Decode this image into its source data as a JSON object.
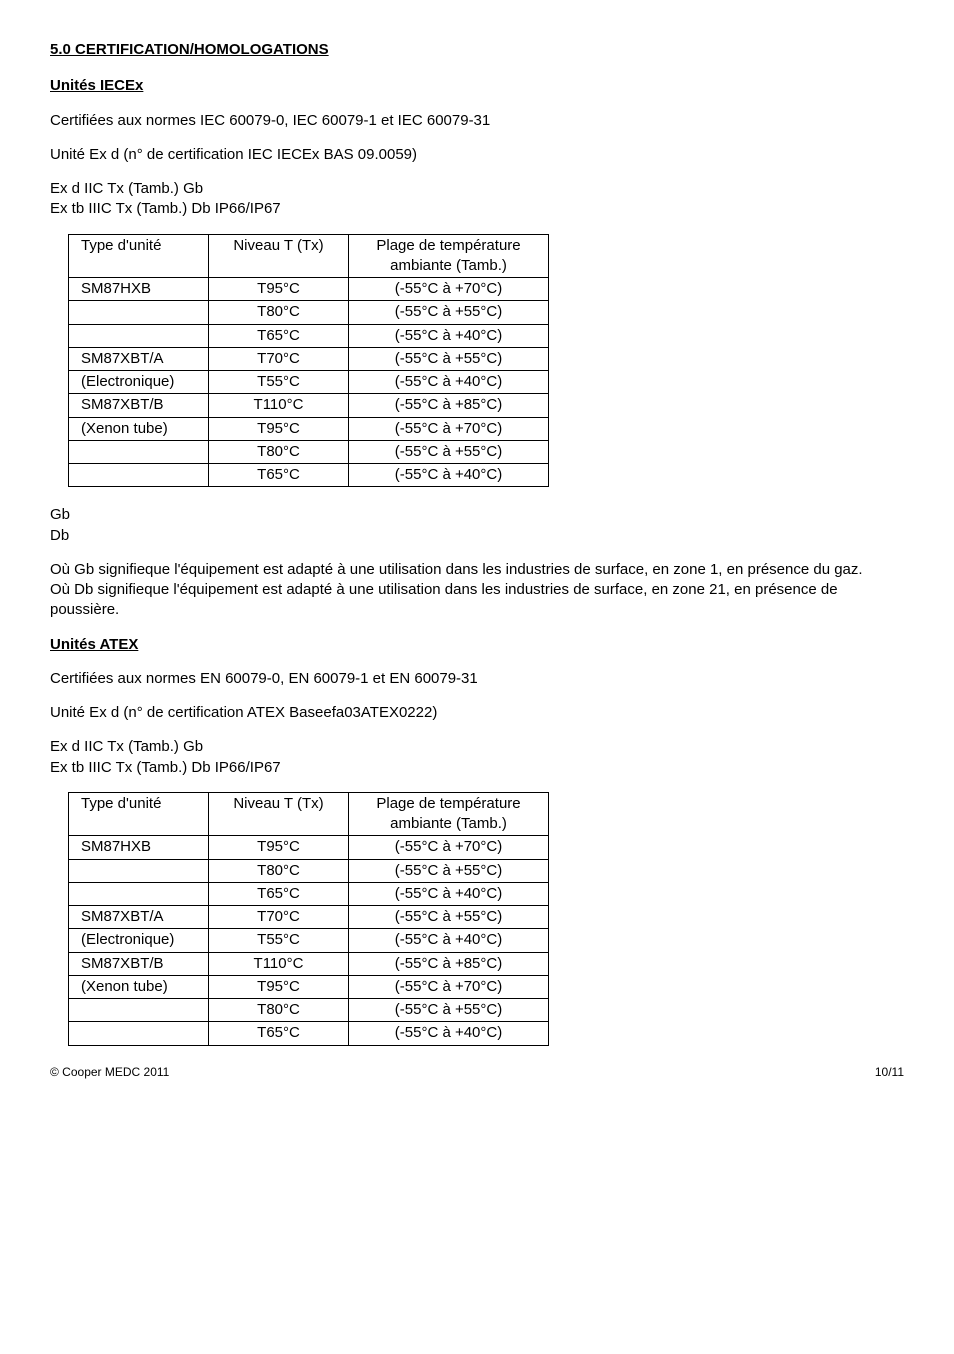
{
  "section_title": "5.0 CERTIFICATION/HOMOLOGATIONS",
  "iecex": {
    "heading": "Unités IECEx",
    "cert_line": "Certifiées aux normes IEC 60079-0, IEC 60079-1 et IEC 60079-31",
    "unit_line": "Unité Ex d (n° de certification IEC IECEx BAS 09.0059)",
    "code1": "Ex d IIC Tx (Tamb.) Gb",
    "code2": "Ex tb IIIC Tx (Tamb.) Db IP66/IP67",
    "table": {
      "head": {
        "c1": "Type d'unité",
        "c2": "Niveau T  (Tx)",
        "c3a": "Plage de température",
        "c3b": "ambiante (Tamb.)"
      },
      "rows": [
        {
          "c1": "SM87HXB",
          "c2": "T95°C",
          "c3": "(-55°C à +70°C)"
        },
        {
          "c1": "",
          "c2": "T80°C",
          "c3": "(-55°C à +55°C)"
        },
        {
          "c1": "",
          "c2": "T65°C",
          "c3": "(-55°C à +40°C)"
        },
        {
          "c1": "SM87XBT/A",
          "c2": "T70°C",
          "c3": "(-55°C à +55°C)"
        },
        {
          "c1": "(Electronique)",
          "c2": "T55°C",
          "c3": "(-55°C à +40°C)"
        },
        {
          "c1": "SM87XBT/B",
          "c2": "T110°C",
          "c3": "(-55°C à +85°C)"
        },
        {
          "c1": "(Xenon tube)",
          "c2": "T95°C",
          "c3": "(-55°C à +70°C)"
        },
        {
          "c1": "",
          "c2": "T80°C",
          "c3": "(-55°C à +55°C)"
        },
        {
          "c1": "",
          "c2": "T65°C",
          "c3": "(-55°C à +40°C)"
        }
      ]
    },
    "gb_label": "Gb",
    "db_label": "Db",
    "gb_text": "Où Gb signifieque l'équipement est adapté à une utilisation dans les industries de surface, en zone 1, en présence du gaz.",
    "db_text": "Où Db signifieque l'équipement est adapté à une utilisation dans les industries de surface, en zone 21, en présence de poussière."
  },
  "atex": {
    "heading": "Unités ATEX",
    "cert_line": "Certifiées aux normes EN 60079-0, EN 60079-1 et EN 60079-31",
    "unit_line": "Unité Ex d (n° de certification ATEX Baseefa03ATEX0222)",
    "code1": "Ex d IIC Tx (Tamb.) Gb",
    "code2": "Ex tb IIIC Tx (Tamb.) Db IP66/IP67",
    "table": {
      "head": {
        "c1": "Type d'unité",
        "c2": "Niveau T  (Tx)",
        "c3a": "Plage de température",
        "c3b": "ambiante (Tamb.)"
      },
      "rows": [
        {
          "c1": "SM87HXB",
          "c2": "T95°C",
          "c3": "(-55°C à +70°C)"
        },
        {
          "c1": "",
          "c2": "T80°C",
          "c3": "(-55°C à +55°C)"
        },
        {
          "c1": "",
          "c2": "T65°C",
          "c3": "(-55°C à +40°C)"
        },
        {
          "c1": "SM87XBT/A",
          "c2": "T70°C",
          "c3": "(-55°C à +55°C)"
        },
        {
          "c1": "(Electronique)",
          "c2": "T55°C",
          "c3": "(-55°C à +40°C)"
        },
        {
          "c1": "SM87XBT/B",
          "c2": "T110°C",
          "c3": "(-55°C à +85°C)"
        },
        {
          "c1": "(Xenon tube)",
          "c2": "T95°C",
          "c3": "(-55°C à +70°C)"
        },
        {
          "c1": "",
          "c2": "T80°C",
          "c3": "(-55°C à +55°C)"
        },
        {
          "c1": "",
          "c2": "T65°C",
          "c3": "(-55°C à +40°C)"
        }
      ]
    }
  },
  "footer": {
    "left": "© Cooper MEDC 2011",
    "right": "10/11"
  }
}
